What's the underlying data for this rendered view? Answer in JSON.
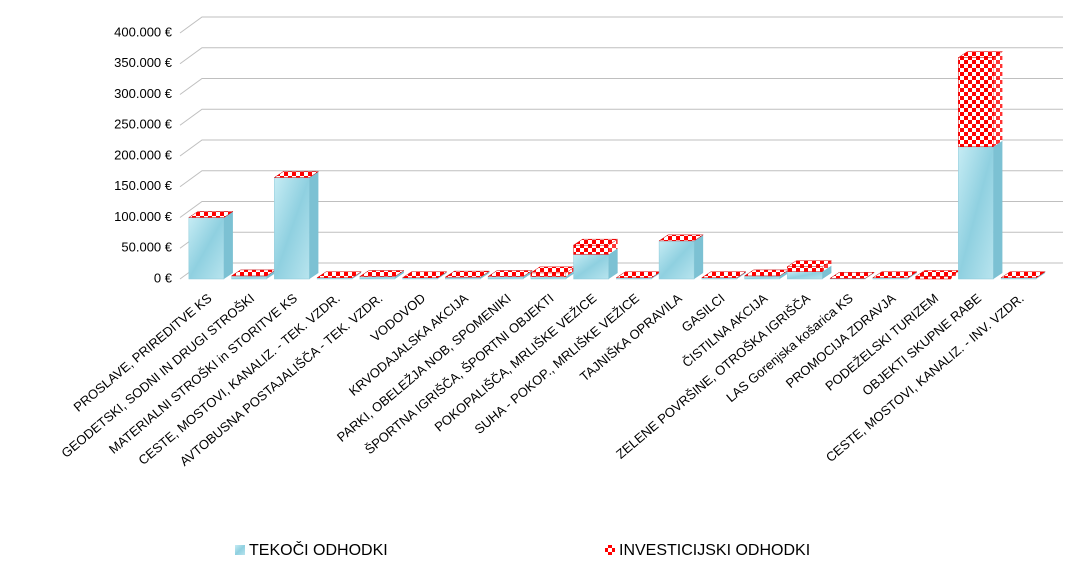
{
  "chart_data": {
    "type": "bar3d_stacked",
    "categories": [
      "PROSLAVE, PRIREDITVE KS",
      "GEODETSKI, SODNI IN DRUGI STROŠKI",
      "MATERIALNI STROŠKI in  STORITVE KS",
      "CESTE, MOSTOVI, KANALIZ. - TEK. VZDR.",
      "AVTOBUSNA POSTAJALIŠČA - TEK. VZDR.",
      "VODOVOD",
      "KRVODAJALSKA AKCIJA",
      "PARKI, OBELEŽJA NOB, SPOMENIKI",
      "ŠPORTNA IGRIŠČA, ŠPORTNI OBJEKTI",
      "POKOPALIŠČA, MRLIŠKE VEŽICE",
      "SUHA - POKOP., MRLIŠKE VEŽICE",
      "TAJNIŠKA OPRAVILA",
      "GASILCI",
      "ČISTILNA AKCIJA",
      "ZELENE POVRŠINE, OTROŠKA IGRIŠČA",
      "LAS Gorenjska košarica KS",
      "PROMOCIJA ZDRAVJA",
      "PODEŽELSKI TURIZEM",
      "OBJEKTI SKUPNE RABE",
      "CESTE, MOSTOVI, KANALIZ. - INV. VZDR."
    ],
    "series": [
      {
        "name": "TEKOČI ODHODKI",
        "color": "#a8dbe8",
        "values": [
          100000,
          5000,
          165000,
          2000,
          4000,
          2000,
          3000,
          4000,
          4000,
          40000,
          2000,
          62000,
          2000,
          5000,
          12000,
          1000,
          2000,
          0,
          215000,
          2000
        ]
      },
      {
        "name": "INVESTICIJSKI ODHODKI",
        "color": "#ff0000",
        "values": [
          0,
          0,
          0,
          0,
          0,
          0,
          0,
          0,
          6000,
          15000,
          0,
          0,
          0,
          0,
          8000,
          0,
          0,
          4000,
          145000,
          0
        ]
      }
    ],
    "ylim": [
      0,
      400000
    ],
    "yticks": [
      {
        "value": 0,
        "label": "0 €"
      },
      {
        "value": 50000,
        "label": "50.000 €"
      },
      {
        "value": 100000,
        "label": "100.000 €"
      },
      {
        "value": 150000,
        "label": "150.000 €"
      },
      {
        "value": 200000,
        "label": "200.000 €"
      },
      {
        "value": 250000,
        "label": "250.000 €"
      },
      {
        "value": 300000,
        "label": "300.000 €"
      },
      {
        "value": 350000,
        "label": "350.000 €"
      },
      {
        "value": 400000,
        "label": "400.000 €"
      }
    ],
    "grid": true,
    "legend": "bottom"
  }
}
